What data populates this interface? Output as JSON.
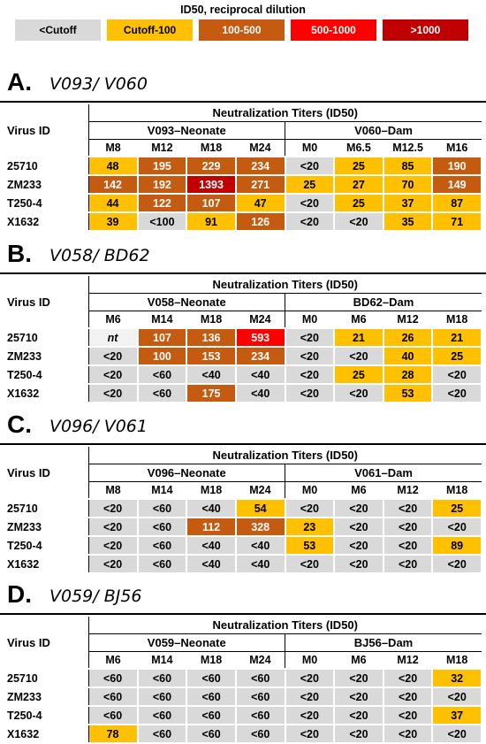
{
  "legend": {
    "title": "ID50, reciprocal dilution",
    "items": [
      {
        "label": "<Cutoff",
        "color": "grey"
      },
      {
        "label": "Cutoff-100",
        "color": "yellow"
      },
      {
        "label": "100-500",
        "color": "orange"
      },
      {
        "label": "500-1000",
        "color": "red"
      },
      {
        "label": ">1000",
        "color": "dark"
      }
    ]
  },
  "palette": {
    "grey": "#d9d9d9",
    "yellow": "#ffc000",
    "orange": "#c55a11",
    "red": "#ff0000",
    "dark": "#c00000"
  },
  "panels": [
    {
      "letter": "A.",
      "subtitle": "V093/ V060",
      "main_header": "Neutralization Titers (ID50)",
      "virus_label": "Virus ID",
      "group1": "V093–Neonate",
      "group2": "V060–Dam",
      "timepoints1": [
        "M8",
        "M12",
        "M18",
        "M24"
      ],
      "timepoints2": [
        "M0",
        "M6.5",
        "M12.5",
        "M16"
      ],
      "rows": [
        {
          "id": "25710",
          "values": [
            "48",
            "195",
            "229",
            "234",
            "<20",
            "25",
            "85",
            "190"
          ],
          "colors": [
            "yellow",
            "orange",
            "orange",
            "orange",
            "grey",
            "yellow",
            "yellow",
            "orange"
          ]
        },
        {
          "id": "ZM233",
          "values": [
            "142",
            "192",
            "1393",
            "271",
            "25",
            "27",
            "70",
            "149"
          ],
          "colors": [
            "orange",
            "orange",
            "dark",
            "orange",
            "yellow",
            "yellow",
            "yellow",
            "orange"
          ]
        },
        {
          "id": "T250-4",
          "values": [
            "44",
            "122",
            "107",
            "47",
            "<20",
            "25",
            "37",
            "87"
          ],
          "colors": [
            "yellow",
            "orange",
            "orange",
            "yellow",
            "grey",
            "yellow",
            "yellow",
            "yellow"
          ]
        },
        {
          "id": "X1632",
          "values": [
            "39",
            "<100",
            "91",
            "126",
            "<20",
            "<20",
            "35",
            "71"
          ],
          "colors": [
            "yellow",
            "grey",
            "yellow",
            "orange",
            "grey",
            "grey",
            "yellow",
            "yellow"
          ]
        }
      ]
    },
    {
      "letter": "B.",
      "subtitle": "V058/ BD62",
      "main_header": "Neutralization Titers (ID50)",
      "virus_label": "Virus ID",
      "group1": "V058–Neonate",
      "group2": "BD62–Dam",
      "timepoints1": [
        "M6",
        "M14",
        "M18",
        "M24"
      ],
      "timepoints2": [
        "M0",
        "M6",
        "M12",
        "M18"
      ],
      "rows": [
        {
          "id": "25710",
          "values": [
            "nt",
            "107",
            "136",
            "593",
            "<20",
            "21",
            "26",
            "21"
          ],
          "colors": [
            "white",
            "orange",
            "orange",
            "red",
            "grey",
            "yellow",
            "yellow",
            "yellow"
          ]
        },
        {
          "id": "ZM233",
          "values": [
            "<20",
            "100",
            "153",
            "234",
            "<20",
            "<20",
            "40",
            "25"
          ],
          "colors": [
            "grey",
            "orange",
            "orange",
            "orange",
            "grey",
            "grey",
            "yellow",
            "yellow"
          ]
        },
        {
          "id": "T250-4",
          "values": [
            "<20",
            "<60",
            "<40",
            "<40",
            "<20",
            "25",
            "28",
            "<20"
          ],
          "colors": [
            "grey",
            "grey",
            "grey",
            "grey",
            "grey",
            "yellow",
            "yellow",
            "grey"
          ]
        },
        {
          "id": "X1632",
          "values": [
            "<20",
            "<60",
            "175",
            "<40",
            "<20",
            "<20",
            "53",
            "<20"
          ],
          "colors": [
            "grey",
            "grey",
            "orange",
            "grey",
            "grey",
            "grey",
            "yellow",
            "grey"
          ]
        }
      ]
    },
    {
      "letter": "C.",
      "subtitle": "V096/ V061",
      "main_header": "Neutralization Titers (ID50)",
      "virus_label": "Virus ID",
      "group1": "V096–Neonate",
      "group2": "V061–Dam",
      "timepoints1": [
        "M8",
        "M14",
        "M18",
        "M24"
      ],
      "timepoints2": [
        "M0",
        "M6",
        "M12",
        "M18"
      ],
      "rows": [
        {
          "id": "25710",
          "values": [
            "<20",
            "<60",
            "<40",
            "54",
            "<20",
            "<20",
            "<20",
            "25"
          ],
          "colors": [
            "grey",
            "grey",
            "grey",
            "yellow",
            "grey",
            "grey",
            "grey",
            "yellow"
          ]
        },
        {
          "id": "ZM233",
          "values": [
            "<20",
            "<60",
            "112",
            "328",
            "23",
            "<20",
            "<20",
            "<20"
          ],
          "colors": [
            "grey",
            "grey",
            "orange",
            "orange",
            "yellow",
            "grey",
            "grey",
            "grey"
          ]
        },
        {
          "id": "T250-4",
          "values": [
            "<20",
            "<60",
            "<40",
            "<40",
            "53",
            "<20",
            "<20",
            "89"
          ],
          "colors": [
            "grey",
            "grey",
            "grey",
            "grey",
            "yellow",
            "grey",
            "grey",
            "yellow"
          ]
        },
        {
          "id": "X1632",
          "values": [
            "<20",
            "<60",
            "<40",
            "<40",
            "<20",
            "<20",
            "<20",
            "<20"
          ],
          "colors": [
            "grey",
            "grey",
            "grey",
            "grey",
            "grey",
            "grey",
            "grey",
            "grey"
          ]
        }
      ]
    },
    {
      "letter": "D.",
      "subtitle": "V059/ BJ56",
      "main_header": "Neutralization Titers (ID50)",
      "virus_label": "Virus ID",
      "group1": "V059–Neonate",
      "group2": "BJ56–Dam",
      "timepoints1": [
        "M6",
        "M14",
        "M18",
        "M24"
      ],
      "timepoints2": [
        "M0",
        "M6",
        "M12",
        "M18"
      ],
      "rows": [
        {
          "id": "25710",
          "values": [
            "<60",
            "<60",
            "<60",
            "<60",
            "<20",
            "<20",
            "<20",
            "32"
          ],
          "colors": [
            "grey",
            "grey",
            "grey",
            "grey",
            "grey",
            "grey",
            "grey",
            "yellow"
          ]
        },
        {
          "id": "ZM233",
          "values": [
            "<60",
            "<60",
            "<60",
            "<60",
            "<20",
            "<20",
            "<20",
            "<20"
          ],
          "colors": [
            "grey",
            "grey",
            "grey",
            "grey",
            "grey",
            "grey",
            "grey",
            "grey"
          ]
        },
        {
          "id": "T250-4",
          "values": [
            "<60",
            "<60",
            "<60",
            "<60",
            "<20",
            "<20",
            "<20",
            "37"
          ],
          "colors": [
            "grey",
            "grey",
            "grey",
            "grey",
            "grey",
            "grey",
            "grey",
            "yellow"
          ]
        },
        {
          "id": "X1632",
          "values": [
            "78",
            "<60",
            "<60",
            "<60",
            "<20",
            "<20",
            "<20",
            "<20"
          ],
          "colors": [
            "yellow",
            "grey",
            "grey",
            "grey",
            "grey",
            "grey",
            "grey",
            "grey"
          ]
        }
      ]
    }
  ]
}
